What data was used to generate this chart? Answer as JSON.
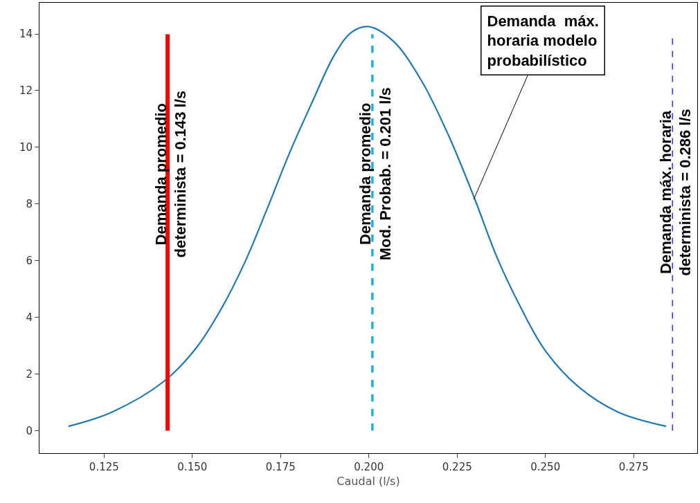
{
  "chart_data": {
    "type": "line",
    "xlabel": "Caudal (l/s)",
    "series": [
      {
        "color": "#1f77b4",
        "x": [
          0.1149,
          0.1272,
          0.142,
          0.1512,
          0.1583,
          0.1648,
          0.1711,
          0.1775,
          0.1839,
          0.1903,
          0.1951,
          0.1998,
          0.2068,
          0.2148,
          0.2227,
          0.2299,
          0.2363,
          0.2427,
          0.2499,
          0.2594,
          0.2706,
          0.2842
        ],
        "values": [
          0.15,
          0.65,
          1.74,
          2.93,
          4.32,
          5.92,
          7.8,
          9.79,
          11.58,
          13.27,
          14.06,
          14.26,
          13.76,
          12.37,
          10.38,
          8.2,
          6.11,
          4.42,
          2.83,
          1.54,
          0.65,
          0.15
        ]
      }
    ],
    "ref_lines": [
      {
        "axis": "x",
        "value": 0.143,
        "label": "Demanda promedio\ndeterminista = 0.143 l/s",
        "color": "#ff0000",
        "line_style": "solid"
      },
      {
        "axis": "x",
        "value": 0.201,
        "label": "Demanda promedio\nMod. Probab. = 0.201 l/s",
        "color": "#1ab0e8",
        "line_style": "dashed"
      },
      {
        "axis": "x",
        "value": 0.286,
        "label": "Demanda máx. horaria\ndeterminista = 0.286 l/s",
        "color": "#3333ff",
        "line_style": "dashed"
      }
    ],
    "annotations": [
      {
        "text": "Demanda  máx.\nhoraria modelo\nprobabilístico",
        "x": 0.2297,
        "y": 8.16
      }
    ],
    "xlim": [
      0.1067,
      0.293
    ],
    "ylim": [
      -0.8,
      15.1
    ],
    "xticks": [
      {
        "value": 0.125,
        "label": "0.125"
      },
      {
        "value": 0.15,
        "label": "0.150"
      },
      {
        "value": 0.175,
        "label": "0.175"
      },
      {
        "value": 0.2,
        "label": "0.200"
      },
      {
        "value": 0.225,
        "label": "0.225"
      },
      {
        "value": 0.25,
        "label": "0.250"
      },
      {
        "value": 0.275,
        "label": "0.275"
      }
    ],
    "yticks": [
      0,
      2,
      4,
      6,
      8,
      10,
      12,
      14
    ],
    "line_style": "solid"
  }
}
